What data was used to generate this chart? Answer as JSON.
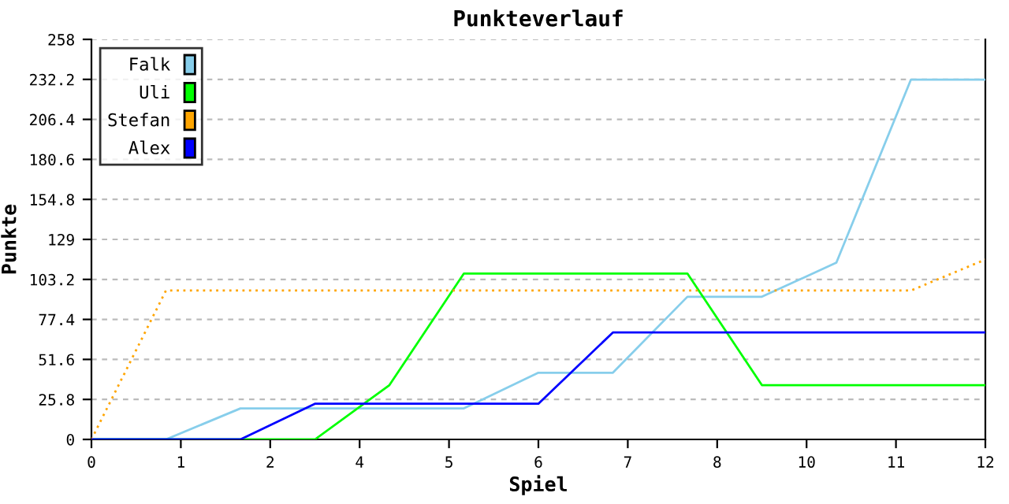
{
  "chart_data": {
    "type": "line",
    "title": "Punkteverlauf",
    "xlabel": "Spiel",
    "ylabel": "Punkte",
    "x": [
      0,
      1,
      2,
      3,
      4,
      5,
      6,
      7,
      8,
      9,
      10,
      11,
      12
    ],
    "xlim": [
      0,
      12
    ],
    "ylim": [
      0,
      258
    ],
    "xticks": [
      0,
      {
        "value": 1.2,
        "label": "1"
      },
      {
        "value": 2.4,
        "label": "2"
      },
      {
        "value": 3.6,
        "label": "4"
      },
      {
        "value": 4.8,
        "label": "5"
      },
      {
        "value": 6,
        "label": "6"
      },
      {
        "value": 7.2,
        "label": "7"
      },
      {
        "value": 8.4,
        "label": "8"
      },
      {
        "value": 9.6,
        "label": "10"
      },
      {
        "value": 10.8,
        "label": "11"
      },
      12
    ],
    "yticks": [
      0,
      25.8,
      51.6,
      77.4,
      103.2,
      129,
      154.8,
      180.6,
      206.4,
      232.2,
      258
    ],
    "grid": "y",
    "legend": "top left",
    "marker": "none",
    "series": [
      {
        "name": "Falk",
        "color": "#87ceeb",
        "line_style": "solid",
        "values": [
          0,
          0,
          20,
          20,
          20,
          20,
          43,
          43,
          92,
          92,
          114,
          232,
          232
        ]
      },
      {
        "name": "Uli",
        "color": "#00ff00",
        "line_style": "solid",
        "values": [
          0,
          0,
          0,
          0,
          35,
          107,
          107,
          107,
          107,
          35,
          35,
          35,
          35
        ]
      },
      {
        "name": "Stefan",
        "color": "#ffa500",
        "line_style": "dotted",
        "values": [
          0,
          96,
          96,
          96,
          96,
          96,
          96,
          96,
          96,
          96,
          96,
          96,
          116
        ]
      },
      {
        "name": "Alex",
        "color": "#0000ff",
        "line_style": "solid",
        "values": [
          0,
          0,
          0,
          23,
          23,
          23,
          23,
          69,
          69,
          69,
          69,
          69,
          69
        ]
      }
    ]
  }
}
